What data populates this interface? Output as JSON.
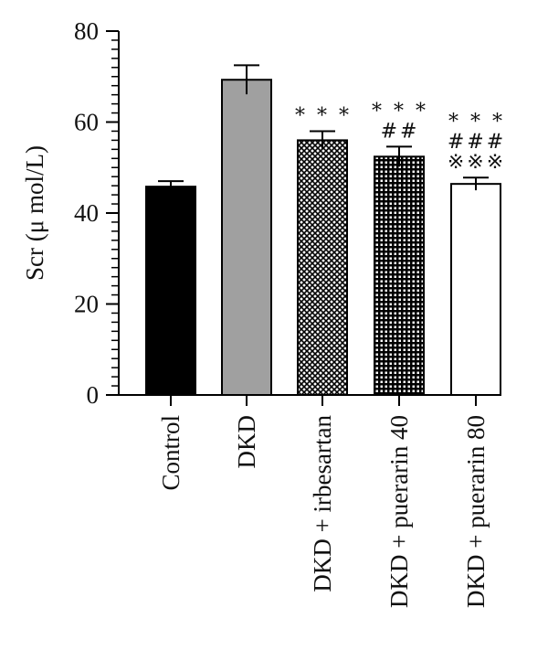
{
  "chart_data": {
    "type": "bar",
    "ylabel": "Scr (μ mol/L)",
    "ylim": [
      0,
      80
    ],
    "yticks": [
      0,
      20,
      40,
      60,
      80
    ],
    "categories": [
      "Control",
      "DKD",
      "DKD + irbesartan",
      "DKD + puerarin 40",
      "DKD + puerarin 80"
    ],
    "values": [
      45.8,
      69.3,
      56.0,
      52.4,
      46.4
    ],
    "errors": [
      1.2,
      3.2,
      2.0,
      2.2,
      1.4
    ],
    "fills": [
      "solid-black",
      "solid-gray",
      "crosshatch",
      "grid",
      "white"
    ],
    "colors": {
      "black": "#000000",
      "gray": "#a0a0a0",
      "white": "#ffffff"
    },
    "annotations": [
      [],
      [],
      [
        "* * *"
      ],
      [
        "* * *",
        "##"
      ],
      [
        "* * *",
        "###",
        "※※※"
      ]
    ]
  }
}
